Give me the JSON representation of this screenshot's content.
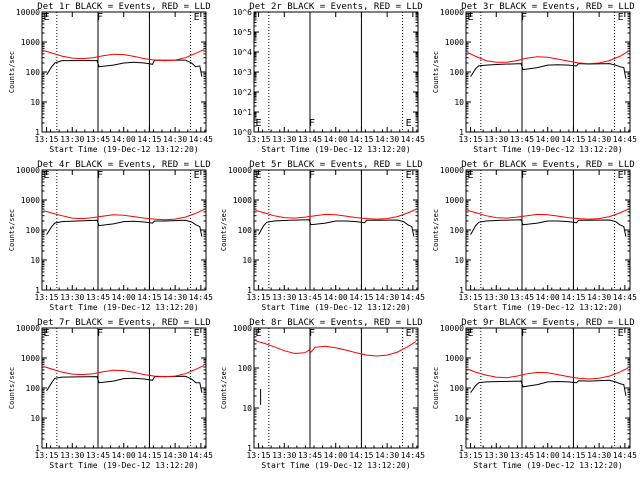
{
  "chart_data": [
    {
      "title": "Det 1r BLACK = Events, RED = LLD",
      "type": "line",
      "yscale": "log",
      "ylim": [
        1,
        10000
      ],
      "ytick_labels": [
        "1",
        "10",
        "100",
        "1000",
        "10000"
      ],
      "xlabel": "Start Time (19-Dec-12 13:12:20)",
      "xtick_labels": [
        "13:15",
        "13:30",
        "13:45",
        "14:00",
        "14:15",
        "14:30",
        "14:45"
      ],
      "ylabel": "Counts/sec",
      "series": [
        {
          "color": "#000000",
          "x": [
            13.25,
            13.3,
            13.33,
            13.4,
            13.55,
            13.74,
            13.76,
            13.9,
            14.0,
            14.1,
            14.2,
            14.28,
            14.3,
            14.4,
            14.6,
            14.66,
            14.7,
            14.74,
            14.76
          ],
          "y": [
            80,
            150,
            200,
            240,
            240,
            240,
            150,
            170,
            200,
            210,
            200,
            180,
            250,
            245,
            250,
            200,
            150,
            160,
            70
          ]
        },
        {
          "color": "#ff0000",
          "x": [
            13.22,
            13.3,
            13.4,
            13.5,
            13.6,
            13.7,
            13.8,
            13.9,
            14.0,
            14.1,
            14.2,
            14.3,
            14.4,
            14.5,
            14.6,
            14.7,
            14.78
          ],
          "y": [
            520,
            430,
            340,
            290,
            280,
            300,
            350,
            390,
            380,
            330,
            280,
            250,
            240,
            250,
            300,
            420,
            560
          ]
        }
      ],
      "markers": [
        "E",
        "F",
        "E"
      ]
    },
    {
      "title": "Det 2r BLACK = Events, RED = LLD",
      "type": "line",
      "yscale": "log",
      "ylim": [
        1,
        1000000
      ],
      "ytick_labels": [
        "10^0",
        "10^1",
        "10^2",
        "10^3",
        "10^4",
        "10^5",
        "10^6"
      ],
      "xlabel": "Start Time (19-Dec-12 13:12:20)",
      "xtick_labels": [
        "13:15",
        "13:30",
        "13:45",
        "14:00",
        "14:15",
        "14:30",
        "14:45"
      ],
      "ylabel": "",
      "series": [],
      "markers": [
        "E",
        "F",
        "E"
      ]
    },
    {
      "title": "Det 3r BLACK = Events, RED = LLD",
      "type": "line",
      "yscale": "log",
      "ylim": [
        1,
        10000
      ],
      "ytick_labels": [
        "1",
        "10",
        "100",
        "1000",
        "10000"
      ],
      "xlabel": "Start Time (19-Dec-12 13:12:20)",
      "xtick_labels": [
        "13:15",
        "13:30",
        "13:45",
        "14:00",
        "14:15",
        "14:30",
        "14:45"
      ],
      "ylabel": "Counts/sec",
      "series": [
        {
          "color": "#000000",
          "x": [
            13.25,
            13.3,
            13.33,
            13.4,
            13.55,
            13.74,
            13.76,
            13.9,
            14.0,
            14.1,
            14.2,
            14.28,
            14.3,
            14.4,
            14.6,
            14.66,
            14.7,
            14.74,
            14.76
          ],
          "y": [
            70,
            130,
            160,
            170,
            180,
            190,
            120,
            140,
            170,
            175,
            170,
            160,
            190,
            185,
            190,
            170,
            150,
            140,
            60
          ]
        },
        {
          "color": "#ff0000",
          "x": [
            13.22,
            13.3,
            13.4,
            13.5,
            13.6,
            13.7,
            13.8,
            13.9,
            14.0,
            14.1,
            14.2,
            14.3,
            14.4,
            14.5,
            14.6,
            14.7,
            14.78
          ],
          "y": [
            450,
            330,
            240,
            210,
            210,
            240,
            290,
            320,
            310,
            270,
            230,
            200,
            190,
            200,
            240,
            330,
            480
          ]
        }
      ],
      "markers": [
        "E",
        "F",
        "E"
      ]
    },
    {
      "title": "Det 4r BLACK = Events, RED = LLD",
      "type": "line",
      "yscale": "log",
      "ylim": [
        1,
        10000
      ],
      "ytick_labels": [
        "1",
        "10",
        "100",
        "1000",
        "10000"
      ],
      "xlabel": "Start Time (19-Dec-12 13:12:20)",
      "xtick_labels": [
        "13:15",
        "13:30",
        "13:45",
        "14:00",
        "14:15",
        "14:30",
        "14:45"
      ],
      "ylabel": "Counts/sec",
      "series": [
        {
          "color": "#000000",
          "x": [
            13.25,
            13.3,
            13.33,
            13.4,
            13.55,
            13.74,
            13.76,
            13.9,
            14.0,
            14.1,
            14.2,
            14.28,
            14.3,
            14.4,
            14.6,
            14.66,
            14.7,
            14.74,
            14.76
          ],
          "y": [
            70,
            130,
            170,
            190,
            200,
            210,
            140,
            160,
            190,
            195,
            185,
            170,
            200,
            200,
            210,
            185,
            150,
            130,
            60
          ]
        },
        {
          "color": "#ff0000",
          "x": [
            13.22,
            13.3,
            13.4,
            13.5,
            13.6,
            13.7,
            13.8,
            13.9,
            14.0,
            14.1,
            14.2,
            14.3,
            14.4,
            14.5,
            14.6,
            14.7,
            14.78
          ],
          "y": [
            440,
            370,
            300,
            250,
            240,
            260,
            290,
            320,
            310,
            280,
            250,
            230,
            220,
            230,
            270,
            360,
            480
          ]
        }
      ],
      "markers": [
        "E",
        "F",
        "E"
      ]
    },
    {
      "title": "Det 5r BLACK = Events, RED = LLD",
      "type": "line",
      "yscale": "log",
      "ylim": [
        1,
        10000
      ],
      "ytick_labels": [
        "1",
        "10",
        "100",
        "1000",
        "10000"
      ],
      "xlabel": "Start Time (19-Dec-12 13:12:20)",
      "xtick_labels": [
        "13:15",
        "13:30",
        "13:45",
        "14:00",
        "14:15",
        "14:30",
        "14:45"
      ],
      "ylabel": "Counts/sec",
      "series": [
        {
          "color": "#000000",
          "x": [
            13.25,
            13.3,
            13.33,
            13.4,
            13.55,
            13.74,
            13.76,
            13.9,
            14.0,
            14.1,
            14.2,
            14.28,
            14.3,
            14.4,
            14.6,
            14.66,
            14.7,
            14.74,
            14.76
          ],
          "y": [
            70,
            140,
            180,
            200,
            210,
            220,
            150,
            170,
            200,
            200,
            190,
            175,
            210,
            210,
            215,
            190,
            150,
            130,
            60
          ]
        },
        {
          "color": "#ff0000",
          "x": [
            13.22,
            13.3,
            13.4,
            13.5,
            13.6,
            13.7,
            13.8,
            13.9,
            14.0,
            14.1,
            14.2,
            14.3,
            14.4,
            14.5,
            14.6,
            14.7,
            14.78
          ],
          "y": [
            450,
            380,
            300,
            260,
            250,
            270,
            300,
            330,
            320,
            290,
            260,
            240,
            230,
            240,
            280,
            370,
            490
          ]
        }
      ],
      "markers": [
        "E",
        "F",
        "E"
      ]
    },
    {
      "title": "Det 6r BLACK = Events, RED = LLD",
      "type": "line",
      "yscale": "log",
      "ylim": [
        1,
        10000
      ],
      "ytick_labels": [
        "1",
        "10",
        "100",
        "1000",
        "10000"
      ],
      "xlabel": "Start Time (19-Dec-12 13:12:20)",
      "xtick_labels": [
        "13:15",
        "13:30",
        "13:45",
        "14:00",
        "14:15",
        "14:30",
        "14:45"
      ],
      "ylabel": "Counts/sec",
      "series": [
        {
          "color": "#000000",
          "x": [
            13.25,
            13.3,
            13.33,
            13.4,
            13.55,
            13.74,
            13.76,
            13.9,
            14.0,
            14.1,
            14.2,
            14.28,
            14.3,
            14.4,
            14.6,
            14.66,
            14.7,
            14.74,
            14.76
          ],
          "y": [
            70,
            140,
            180,
            200,
            210,
            220,
            150,
            170,
            200,
            200,
            190,
            175,
            210,
            210,
            215,
            190,
            150,
            130,
            60
          ]
        },
        {
          "color": "#ff0000",
          "x": [
            13.22,
            13.3,
            13.4,
            13.5,
            13.6,
            13.7,
            13.8,
            13.9,
            14.0,
            14.1,
            14.2,
            14.3,
            14.4,
            14.5,
            14.6,
            14.7,
            14.78
          ],
          "y": [
            450,
            380,
            300,
            260,
            250,
            270,
            300,
            330,
            320,
            290,
            260,
            240,
            230,
            240,
            280,
            370,
            490
          ]
        }
      ],
      "markers": [
        "E",
        "F",
        "E"
      ]
    },
    {
      "title": "Det 7r BLACK = Events, RED = LLD",
      "type": "line",
      "yscale": "log",
      "ylim": [
        1,
        10000
      ],
      "ytick_labels": [
        "1",
        "10",
        "100",
        "1000",
        "10000"
      ],
      "xlabel": "Start Time (19-Dec-12 13:12:20)",
      "xtick_labels": [
        "13:15",
        "13:30",
        "13:45",
        "14:00",
        "14:15",
        "14:30",
        "14:45"
      ],
      "ylabel": "Counts/sec",
      "series": [
        {
          "color": "#000000",
          "x": [
            13.25,
            13.3,
            13.33,
            13.4,
            13.55,
            13.74,
            13.76,
            13.9,
            14.0,
            14.1,
            14.2,
            14.28,
            14.3,
            14.4,
            14.6,
            14.66,
            14.7,
            14.74,
            14.76
          ],
          "y": [
            80,
            150,
            210,
            230,
            235,
            240,
            150,
            170,
            205,
            210,
            200,
            180,
            240,
            240,
            245,
            200,
            150,
            150,
            70
          ]
        },
        {
          "color": "#ff0000",
          "x": [
            13.22,
            13.3,
            13.4,
            13.5,
            13.6,
            13.7,
            13.8,
            13.9,
            14.0,
            14.1,
            14.2,
            14.3,
            14.4,
            14.5,
            14.6,
            14.7,
            14.78
          ],
          "y": [
            520,
            430,
            340,
            290,
            280,
            300,
            350,
            390,
            380,
            330,
            280,
            250,
            240,
            250,
            300,
            420,
            560
          ]
        }
      ],
      "markers": [
        "E",
        "F",
        "E"
      ]
    },
    {
      "title": "Det 8r BLACK = Events, RED = LLD",
      "type": "line",
      "yscale": "log",
      "ylim": [
        1,
        1000
      ],
      "ytick_labels": [
        "1",
        "10",
        "100",
        "1000"
      ],
      "xlabel": "Start Time (19-Dec-12 13:12:20)",
      "xtick_labels": [
        "13:15",
        "13:30",
        "13:45",
        "14:00",
        "14:15",
        "14:30",
        "14:45"
      ],
      "ylabel": "Counts/sec",
      "series": [
        {
          "color": "#000000",
          "x": [
            13.27,
            13.27
          ],
          "y": [
            12,
            30
          ]
        },
        {
          "color": "#ff0000",
          "x": [
            13.22,
            13.3,
            13.4,
            13.5,
            13.6,
            13.7,
            13.74,
            13.76,
            13.8,
            13.9,
            14.0,
            14.1,
            14.2,
            14.3,
            14.4,
            14.5,
            14.6,
            14.7,
            14.78
          ],
          "y": [
            480,
            420,
            340,
            270,
            230,
            240,
            280,
            250,
            330,
            350,
            320,
            280,
            240,
            210,
            200,
            210,
            250,
            340,
            460
          ]
        }
      ],
      "markers": [
        "E",
        "F",
        "E"
      ]
    },
    {
      "title": "Det 9r BLACK = Events, RED = LLD",
      "type": "line",
      "yscale": "log",
      "ylim": [
        1,
        10000
      ],
      "ytick_labels": [
        "1",
        "10",
        "100",
        "1000",
        "10000"
      ],
      "xlabel": "Start Time (19-Dec-12 13:12:20)",
      "xtick_labels": [
        "13:15",
        "13:30",
        "13:45",
        "14:00",
        "14:15",
        "14:30",
        "14:45"
      ],
      "ylabel": "Counts/sec",
      "series": [
        {
          "color": "#000000",
          "x": [
            13.25,
            13.3,
            13.33,
            13.4,
            13.55,
            13.74,
            13.76,
            13.9,
            14.0,
            14.1,
            14.2,
            14.28,
            14.3,
            14.4,
            14.6,
            14.66,
            14.7,
            14.74,
            14.76
          ],
          "y": [
            70,
            120,
            150,
            160,
            165,
            170,
            110,
            130,
            160,
            165,
            160,
            150,
            175,
            170,
            180,
            160,
            140,
            130,
            55
          ]
        },
        {
          "color": "#ff0000",
          "x": [
            13.22,
            13.3,
            13.4,
            13.5,
            13.6,
            13.7,
            13.8,
            13.9,
            14.0,
            14.1,
            14.2,
            14.3,
            14.4,
            14.5,
            14.6,
            14.7,
            14.78
          ],
          "y": [
            430,
            340,
            270,
            230,
            220,
            250,
            300,
            330,
            320,
            280,
            240,
            210,
            200,
            210,
            250,
            340,
            460
          ]
        }
      ],
      "markers": [
        "E",
        "F",
        "E"
      ]
    }
  ]
}
